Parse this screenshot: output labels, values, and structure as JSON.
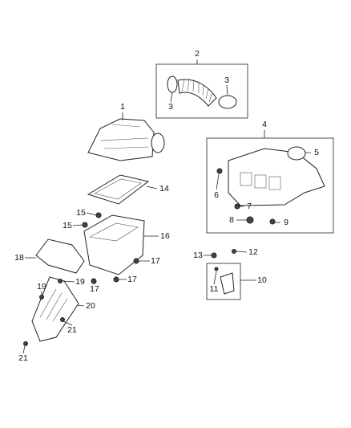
{
  "callouts": [
    {
      "label": "1"
    },
    {
      "label": "2"
    },
    {
      "label": "3"
    },
    {
      "label": "3"
    },
    {
      "label": "4"
    },
    {
      "label": "5"
    },
    {
      "label": "6"
    },
    {
      "label": "7"
    },
    {
      "label": "8"
    },
    {
      "label": "9"
    },
    {
      "label": "10"
    },
    {
      "label": "11"
    },
    {
      "label": "12"
    },
    {
      "label": "13"
    },
    {
      "label": "14"
    },
    {
      "label": "15"
    },
    {
      "label": "15"
    },
    {
      "label": "16"
    },
    {
      "label": "17"
    },
    {
      "label": "17"
    },
    {
      "label": "17"
    },
    {
      "label": "18"
    },
    {
      "label": "19"
    },
    {
      "label": "19"
    },
    {
      "label": "20"
    },
    {
      "label": "21"
    },
    {
      "label": "21"
    }
  ]
}
